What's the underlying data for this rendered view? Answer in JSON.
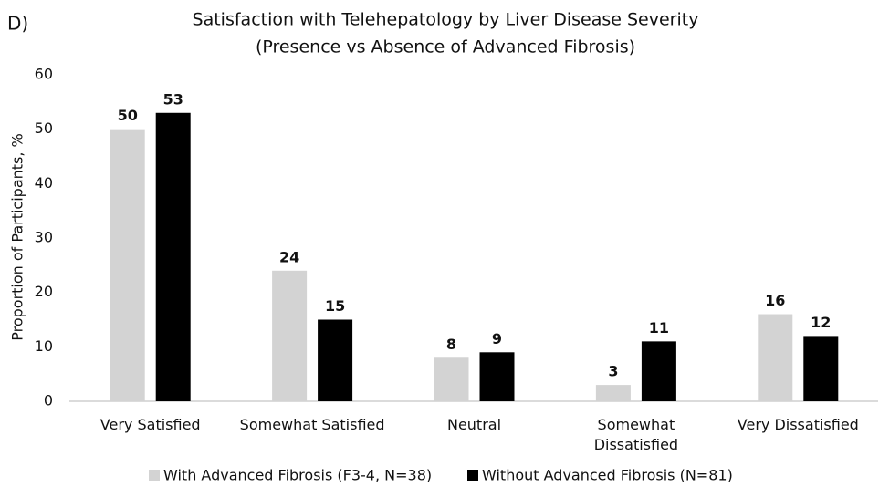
{
  "chart_data": {
    "type": "bar",
    "panel_label": "D)",
    "title": "Satisfaction with Telehepatology by Liver Disease Severity",
    "subtitle": "(Presence vs Absence of Advanced Fibrosis)",
    "y_label": "Proportion of Participants, %",
    "categories": [
      "Very Satisfied",
      "Somewhat Satisfied",
      "Neutral",
      "Somewhat Dissatisfied",
      "Very Dissatisfied"
    ],
    "series": [
      {
        "name": "With Advanced Fibrosis (F3-4, N=38)",
        "color": "#d3d3d3",
        "values": [
          50,
          24,
          8,
          3,
          16
        ]
      },
      {
        "name": "Without Advanced Fibrosis (N=81)",
        "color": "#000000",
        "values": [
          53,
          15,
          9,
          11,
          12
        ]
      }
    ],
    "ylim": [
      0,
      60
    ],
    "yticks": [
      0,
      10,
      20,
      30,
      40,
      50,
      60
    ],
    "grid": false,
    "legend": "bottom"
  }
}
